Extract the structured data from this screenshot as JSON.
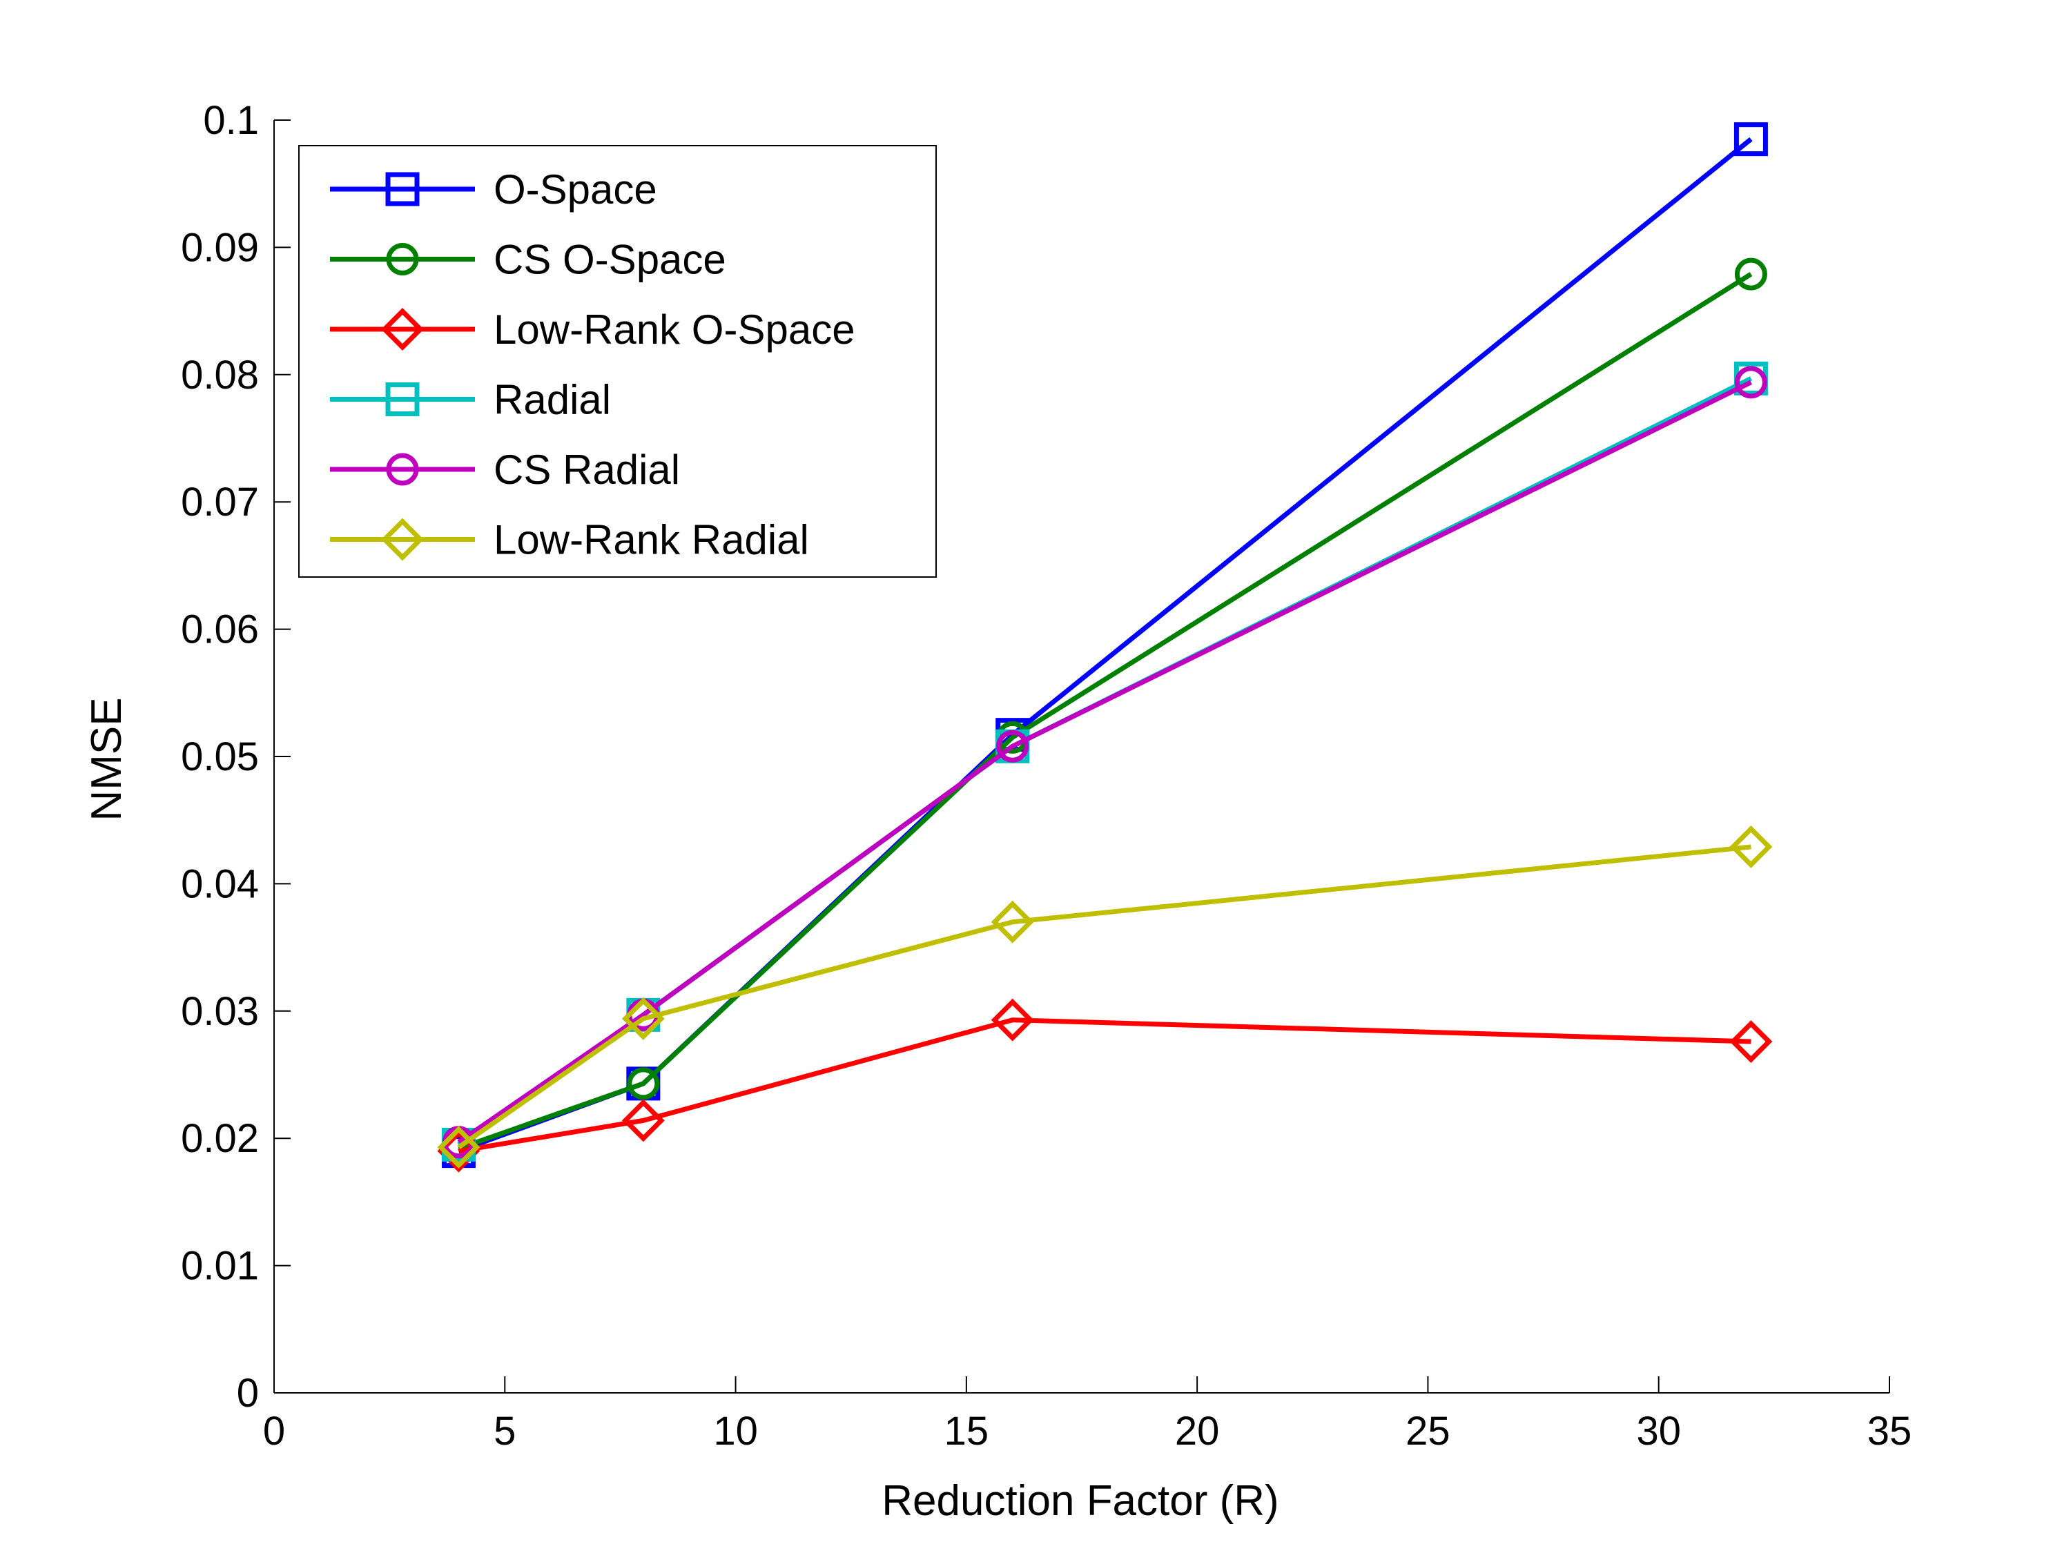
{
  "chart_data": {
    "type": "line",
    "title": "",
    "xlabel": "Reduction Factor (R)",
    "ylabel": "NMSE",
    "xlim": [
      0,
      35
    ],
    "ylim": [
      0,
      0.1
    ],
    "xticks": [
      0,
      5,
      10,
      15,
      20,
      25,
      30,
      35
    ],
    "xtick_labels": [
      "0",
      "5",
      "10",
      "15",
      "20",
      "25",
      "30",
      "35"
    ],
    "yticks": [
      0,
      0.01,
      0.02,
      0.03,
      0.04,
      0.05,
      0.06,
      0.07,
      0.08,
      0.09,
      0.1
    ],
    "ytick_labels": [
      "0",
      "0.01",
      "0.02",
      "0.03",
      "0.04",
      "0.05",
      "0.06",
      "0.07",
      "0.08",
      "0.09",
      "0.1"
    ],
    "grid": false,
    "legend_position": "top-left",
    "x": [
      4,
      8,
      16,
      32
    ],
    "series": [
      {
        "name": "O-Space",
        "color": "#0000ff",
        "marker": "square",
        "values": [
          0.019,
          0.0243,
          0.0517,
          0.0985
        ]
      },
      {
        "name": "CS O-Space",
        "color": "#008000",
        "marker": "circle",
        "values": [
          0.0192,
          0.0243,
          0.0515,
          0.0879
        ]
      },
      {
        "name": "Low-Rank O-Space",
        "color": "#ff0000",
        "marker": "diamond",
        "values": [
          0.019,
          0.0214,
          0.0293,
          0.0276
        ]
      },
      {
        "name": "Radial",
        "color": "#00bfbf",
        "marker": "square",
        "values": [
          0.0195,
          0.0297,
          0.0508,
          0.0797
        ]
      },
      {
        "name": "CS Radial",
        "color": "#bf00bf",
        "marker": "circle",
        "values": [
          0.0197,
          0.0297,
          0.0508,
          0.0794
        ]
      },
      {
        "name": "Low-Rank Radial",
        "color": "#bfbf00",
        "marker": "diamond",
        "values": [
          0.0193,
          0.0294,
          0.037,
          0.0429
        ]
      }
    ]
  }
}
